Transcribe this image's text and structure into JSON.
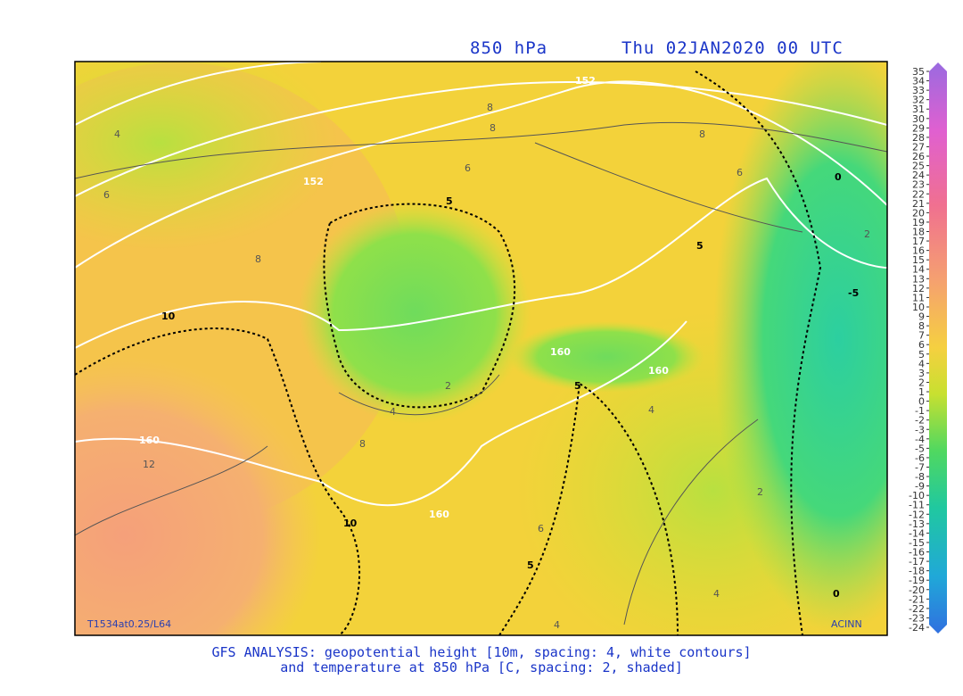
{
  "header": {
    "level": "850 hPa",
    "time": "Thu 02JAN2020 00 UTC"
  },
  "map": {
    "model_label": "T1534at0.25/L64",
    "credit": "ACINN",
    "contour_labels": [
      "152",
      "152",
      "160",
      "160",
      "160",
      "160",
      "10",
      "10",
      "5",
      "5",
      "5",
      "5",
      "0",
      "-5",
      "0",
      "8",
      "8",
      "8",
      "8",
      "8",
      "6",
      "6",
      "6",
      "6",
      "4",
      "4",
      "4",
      "4",
      "4",
      "2",
      "2",
      "2",
      "12"
    ]
  },
  "colorbar": {
    "ticks": [
      35,
      34,
      33,
      32,
      31,
      30,
      29,
      28,
      27,
      26,
      25,
      24,
      23,
      22,
      21,
      20,
      19,
      18,
      17,
      16,
      15,
      14,
      13,
      12,
      11,
      10,
      9,
      8,
      7,
      6,
      5,
      4,
      3,
      2,
      1,
      0,
      -1,
      -2,
      -3,
      -4,
      -5,
      -6,
      -7,
      -8,
      -9,
      -10,
      -11,
      -12,
      -13,
      -14,
      -15,
      -16,
      -17,
      -18,
      -19,
      -20,
      -21,
      -22,
      -23,
      -24
    ]
  },
  "footer": {
    "line1": "GFS ANALYSIS: geopotential height [10m, spacing: 4, white contours]",
    "line2": "and temperature at 850 hPa [C, spacing: 2, shaded]"
  }
}
